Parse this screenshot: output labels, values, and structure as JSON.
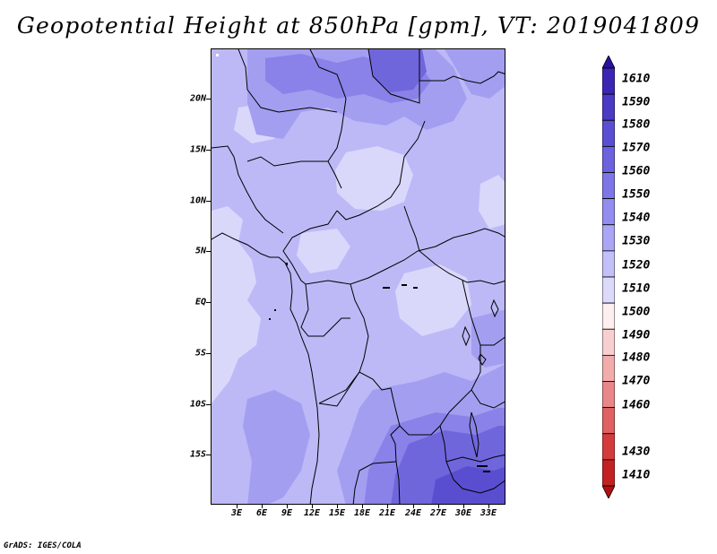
{
  "title": "Geopotential Height at 850hPa [gpm], VT: 2019041809",
  "credit": "GrADS: IGES/COLA",
  "map": {
    "lat_labels": [
      "20N",
      "15N",
      "10N",
      "5N",
      "EQ",
      "5S",
      "10S",
      "15S"
    ],
    "lon_labels": [
      "3E",
      "6E",
      "9E",
      "12E",
      "15E",
      "18E",
      "21E",
      "24E",
      "27E",
      "30E",
      "33E"
    ]
  },
  "colorbar": {
    "labels": [
      "1610",
      "1590",
      "1580",
      "1570",
      "1560",
      "1550",
      "1540",
      "1530",
      "1520",
      "1510",
      "1500",
      "1490",
      "1480",
      "1470",
      "1460",
      "1430",
      "1410"
    ],
    "colors": [
      "#2a12a0",
      "#3b26b4",
      "#4a3ac4",
      "#5a4ed2",
      "#6c62de",
      "#7e76e6",
      "#948df0",
      "#aaa5f4",
      "#c3bff8",
      "#dcd9fb",
      "#fdeef0",
      "#f8cfd1",
      "#f1acae",
      "#e88688",
      "#df6162",
      "#d43c3c",
      "#c42222",
      "#b01010"
    ]
  },
  "colors": {
    "fill_1520": "#d9d8fb",
    "fill_1530": "#bdb9f7",
    "fill_1540": "#a49ef1",
    "fill_1550": "#8a82e8",
    "fill_1560": "#7066dc",
    "fill_1570": "#5a4ed0"
  }
}
